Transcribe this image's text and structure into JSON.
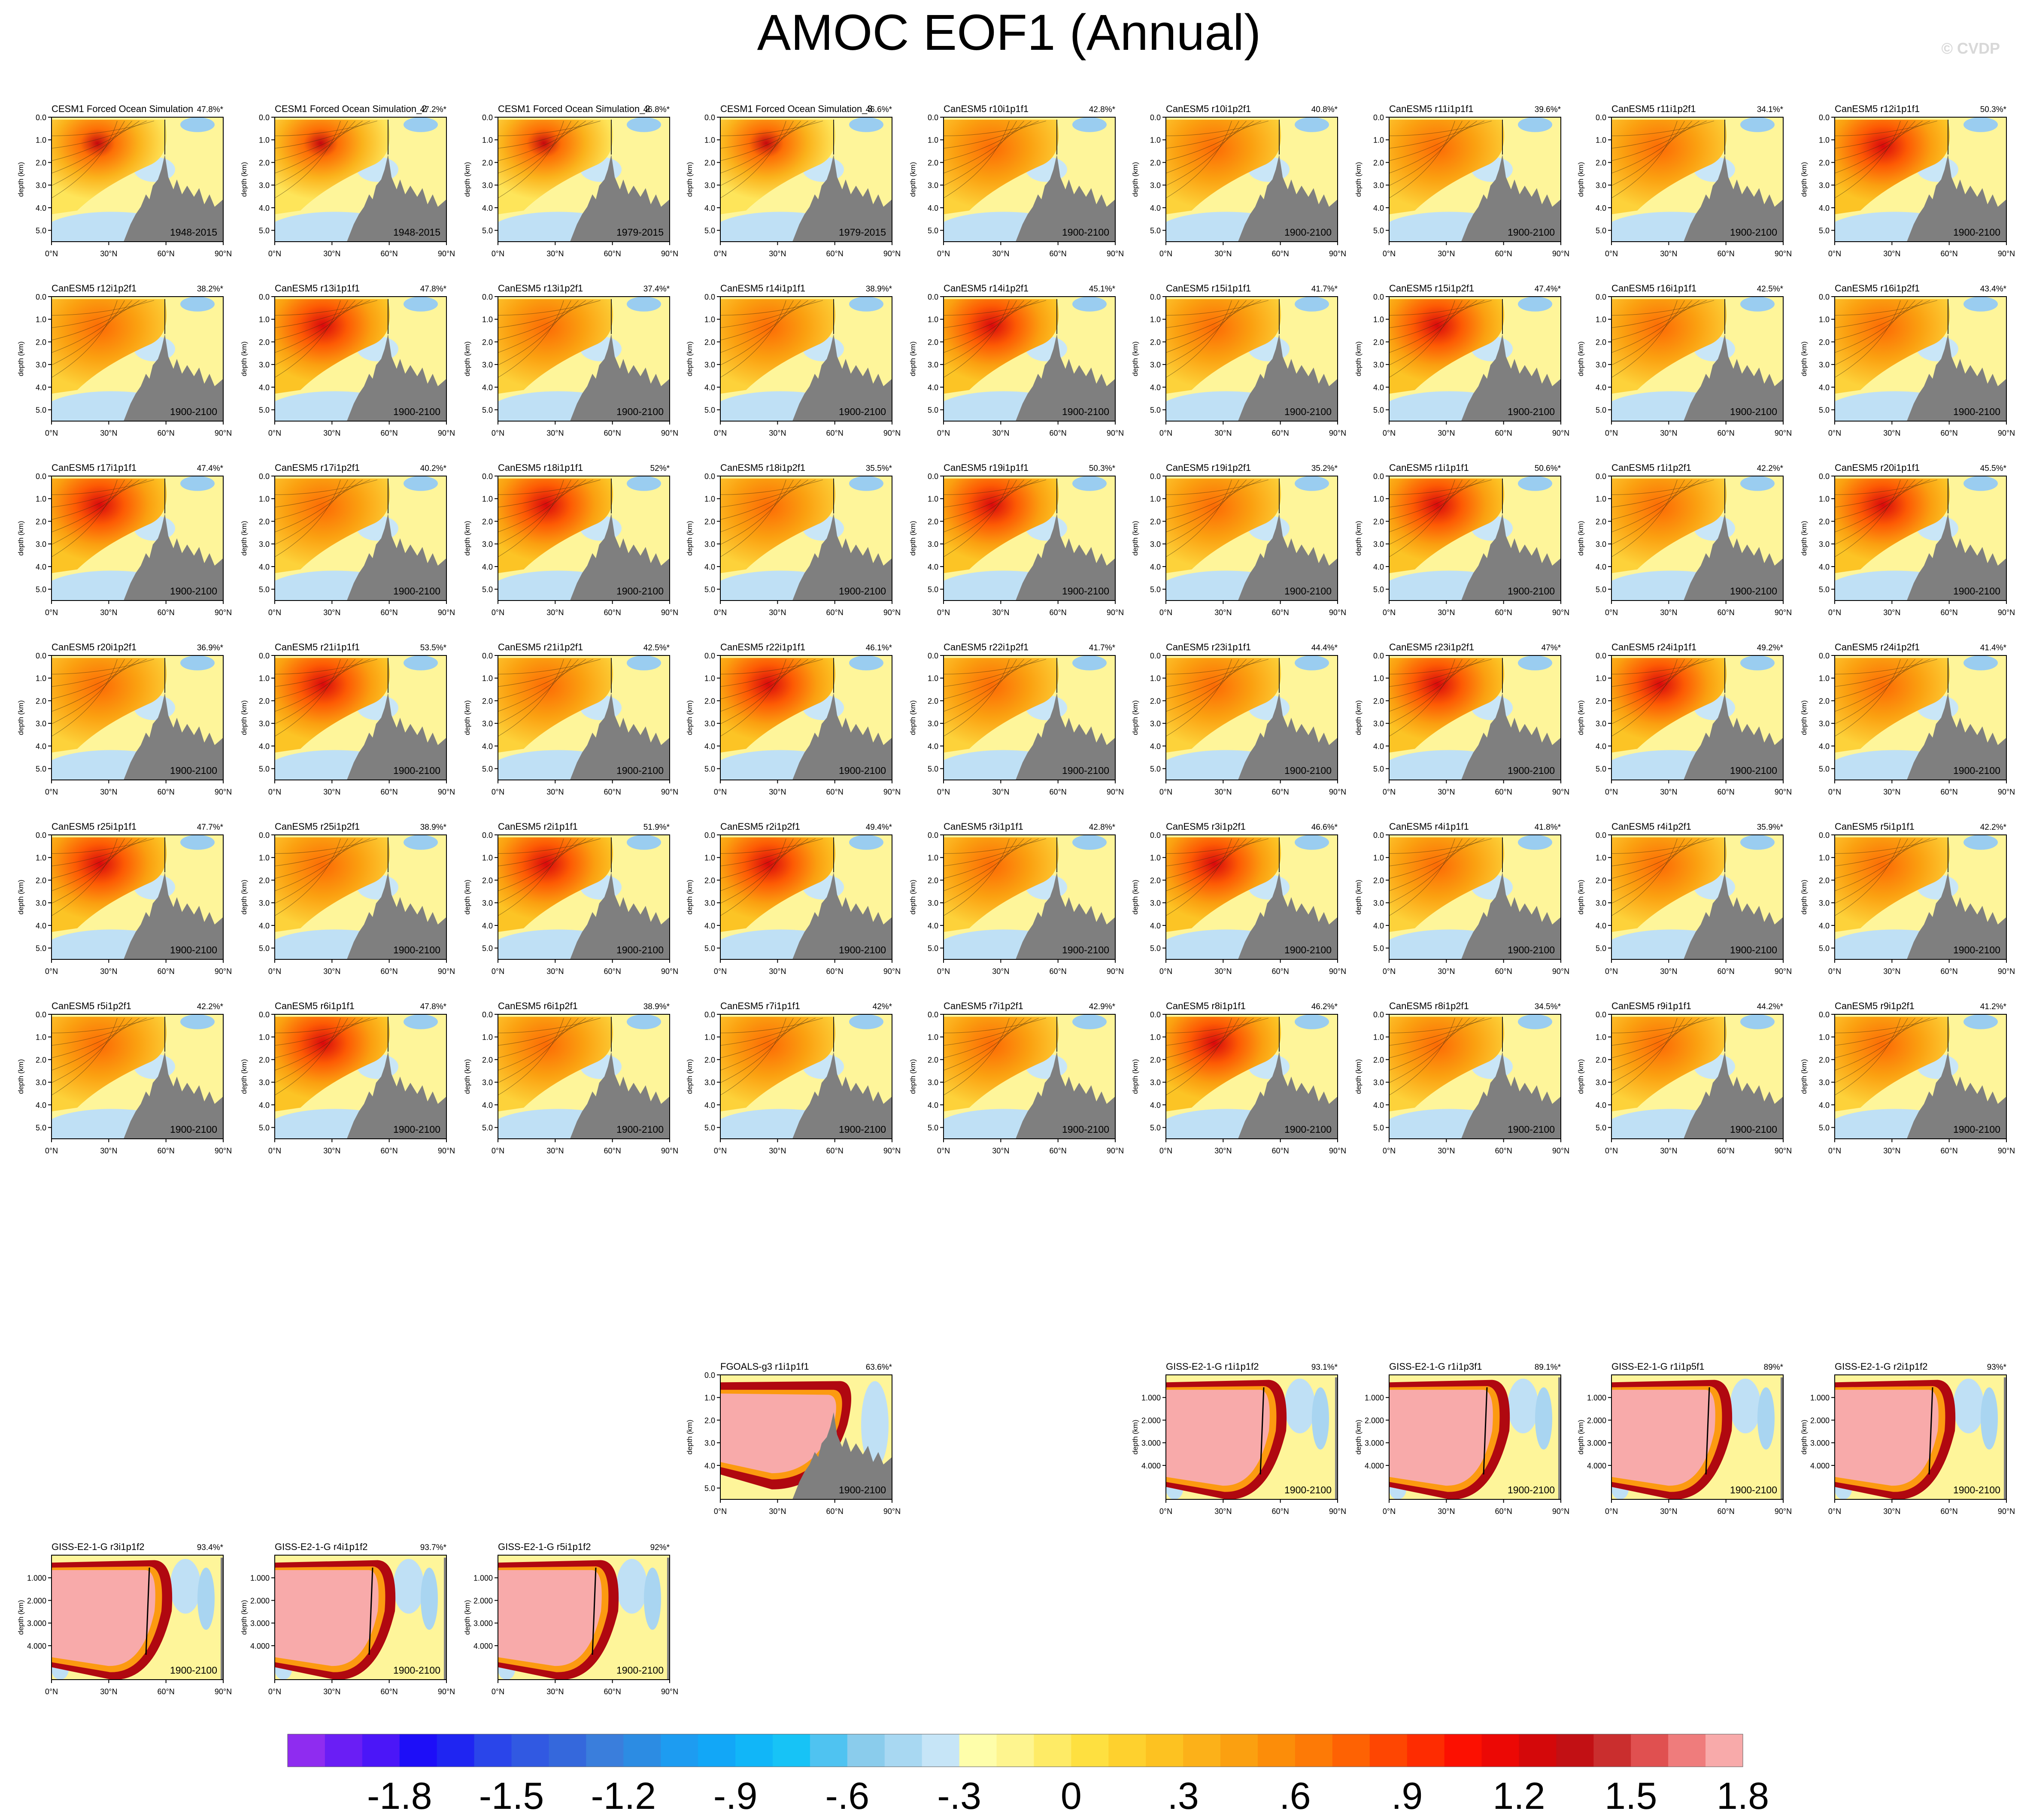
{
  "title": "AMOC EOF1 (Annual)",
  "credit": "© CVDP",
  "axes": {
    "ylabel": "depth (km)",
    "xticks": [
      "0°N",
      "30°N",
      "60°N",
      "90°N"
    ],
    "yticks_standard": [
      "0.0",
      "1.0",
      "2.0",
      "3.0",
      "4.0",
      "5.0"
    ],
    "yticks_giss": [
      "1.000",
      "2.000",
      "3.000",
      "4.000"
    ],
    "x_range_degN": [
      0,
      90
    ],
    "depth_range_km": [
      0,
      5.5
    ]
  },
  "chart_data": {
    "type": "heatmap",
    "layout": "panel-grid",
    "panels": [
      {
        "name": "CESM1 Forced Ocean Simulation",
        "pct": "47.8%*",
        "period": "1948-2015",
        "row": 0,
        "col": 0,
        "style": "cesm"
      },
      {
        "name": "CESM1 Forced Ocean Simulation_2",
        "pct": "47.2%*",
        "period": "1948-2015",
        "row": 0,
        "col": 1,
        "style": "cesm"
      },
      {
        "name": "CESM1 Forced Ocean Simulation_2",
        "pct": "46.8%*",
        "period": "1979-2015",
        "row": 0,
        "col": 2,
        "style": "cesm"
      },
      {
        "name": "CESM1 Forced Ocean Simulation_3",
        "pct": "46.6%*",
        "period": "1979-2015",
        "row": 0,
        "col": 3,
        "style": "cesm"
      },
      {
        "name": "CanESM5 r10i1p1f1",
        "pct": "42.8%*",
        "period": "1900-2100",
        "row": 0,
        "col": 4,
        "style": "can"
      },
      {
        "name": "CanESM5 r10i1p2f1",
        "pct": "40.8%*",
        "period": "1900-2100",
        "row": 0,
        "col": 5,
        "style": "can"
      },
      {
        "name": "CanESM5 r11i1p1f1",
        "pct": "39.6%*",
        "period": "1900-2100",
        "row": 0,
        "col": 6,
        "style": "can"
      },
      {
        "name": "CanESM5 r11i1p2f1",
        "pct": "34.1%*",
        "period": "1900-2100",
        "row": 0,
        "col": 7,
        "style": "can"
      },
      {
        "name": "CanESM5 r12i1p1f1",
        "pct": "50.3%*",
        "period": "1900-2100",
        "row": 0,
        "col": 8,
        "style": "can"
      },
      {
        "name": "CanESM5 r12i1p2f1",
        "pct": "38.2%*",
        "period": "1900-2100",
        "row": 1,
        "col": 0,
        "style": "can"
      },
      {
        "name": "CanESM5 r13i1p1f1",
        "pct": "47.8%*",
        "period": "1900-2100",
        "row": 1,
        "col": 1,
        "style": "can"
      },
      {
        "name": "CanESM5 r13i1p2f1",
        "pct": "37.4%*",
        "period": "1900-2100",
        "row": 1,
        "col": 2,
        "style": "can"
      },
      {
        "name": "CanESM5 r14i1p1f1",
        "pct": "38.9%*",
        "period": "1900-2100",
        "row": 1,
        "col": 3,
        "style": "can"
      },
      {
        "name": "CanESM5 r14i1p2f1",
        "pct": "45.1%*",
        "period": "1900-2100",
        "row": 1,
        "col": 4,
        "style": "can"
      },
      {
        "name": "CanESM5 r15i1p1f1",
        "pct": "41.7%*",
        "period": "1900-2100",
        "row": 1,
        "col": 5,
        "style": "can"
      },
      {
        "name": "CanESM5 r15i1p2f1",
        "pct": "47.4%*",
        "period": "1900-2100",
        "row": 1,
        "col": 6,
        "style": "can"
      },
      {
        "name": "CanESM5 r16i1p1f1",
        "pct": "42.5%*",
        "period": "1900-2100",
        "row": 1,
        "col": 7,
        "style": "can"
      },
      {
        "name": "CanESM5 r16i1p2f1",
        "pct": "43.4%*",
        "period": "1900-2100",
        "row": 1,
        "col": 8,
        "style": "can"
      },
      {
        "name": "CanESM5 r17i1p1f1",
        "pct": "47.4%*",
        "period": "1900-2100",
        "row": 2,
        "col": 0,
        "style": "can"
      },
      {
        "name": "CanESM5 r17i1p2f1",
        "pct": "40.2%*",
        "period": "1900-2100",
        "row": 2,
        "col": 1,
        "style": "can"
      },
      {
        "name": "CanESM5 r18i1p1f1",
        "pct": "52%*",
        "period": "1900-2100",
        "row": 2,
        "col": 2,
        "style": "can"
      },
      {
        "name": "CanESM5 r18i1p2f1",
        "pct": "35.5%*",
        "period": "1900-2100",
        "row": 2,
        "col": 3,
        "style": "can"
      },
      {
        "name": "CanESM5 r19i1p1f1",
        "pct": "50.3%*",
        "period": "1900-2100",
        "row": 2,
        "col": 4,
        "style": "can"
      },
      {
        "name": "CanESM5 r19i1p2f1",
        "pct": "35.2%*",
        "period": "1900-2100",
        "row": 2,
        "col": 5,
        "style": "can"
      },
      {
        "name": "CanESM5 r1i1p1f1",
        "pct": "50.6%*",
        "period": "1900-2100",
        "row": 2,
        "col": 6,
        "style": "can"
      },
      {
        "name": "CanESM5 r1i1p2f1",
        "pct": "42.2%*",
        "period": "1900-2100",
        "row": 2,
        "col": 7,
        "style": "can"
      },
      {
        "name": "CanESM5 r20i1p1f1",
        "pct": "45.5%*",
        "period": "1900-2100",
        "row": 2,
        "col": 8,
        "style": "can"
      },
      {
        "name": "CanESM5 r20i1p2f1",
        "pct": "36.9%*",
        "period": "1900-2100",
        "row": 3,
        "col": 0,
        "style": "can"
      },
      {
        "name": "CanESM5 r21i1p1f1",
        "pct": "53.5%*",
        "period": "1900-2100",
        "row": 3,
        "col": 1,
        "style": "can"
      },
      {
        "name": "CanESM5 r21i1p2f1",
        "pct": "42.5%*",
        "period": "1900-2100",
        "row": 3,
        "col": 2,
        "style": "can"
      },
      {
        "name": "CanESM5 r22i1p1f1",
        "pct": "46.1%*",
        "period": "1900-2100",
        "row": 3,
        "col": 3,
        "style": "can"
      },
      {
        "name": "CanESM5 r22i1p2f1",
        "pct": "41.7%*",
        "period": "1900-2100",
        "row": 3,
        "col": 4,
        "style": "can"
      },
      {
        "name": "CanESM5 r23i1p1f1",
        "pct": "44.4%*",
        "period": "1900-2100",
        "row": 3,
        "col": 5,
        "style": "can"
      },
      {
        "name": "CanESM5 r23i1p2f1",
        "pct": "47%*",
        "period": "1900-2100",
        "row": 3,
        "col": 6,
        "style": "can"
      },
      {
        "name": "CanESM5 r24i1p1f1",
        "pct": "49.2%*",
        "period": "1900-2100",
        "row": 3,
        "col": 7,
        "style": "can"
      },
      {
        "name": "CanESM5 r24i1p2f1",
        "pct": "41.4%*",
        "period": "1900-2100",
        "row": 3,
        "col": 8,
        "style": "can"
      },
      {
        "name": "CanESM5 r25i1p1f1",
        "pct": "47.7%*",
        "period": "1900-2100",
        "row": 4,
        "col": 0,
        "style": "can"
      },
      {
        "name": "CanESM5 r25i1p2f1",
        "pct": "38.9%*",
        "period": "1900-2100",
        "row": 4,
        "col": 1,
        "style": "can"
      },
      {
        "name": "CanESM5 r2i1p1f1",
        "pct": "51.9%*",
        "period": "1900-2100",
        "row": 4,
        "col": 2,
        "style": "can"
      },
      {
        "name": "CanESM5 r2i1p2f1",
        "pct": "49.4%*",
        "period": "1900-2100",
        "row": 4,
        "col": 3,
        "style": "can"
      },
      {
        "name": "CanESM5 r3i1p1f1",
        "pct": "42.8%*",
        "period": "1900-2100",
        "row": 4,
        "col": 4,
        "style": "can"
      },
      {
        "name": "CanESM5 r3i1p2f1",
        "pct": "46.6%*",
        "period": "1900-2100",
        "row": 4,
        "col": 5,
        "style": "can"
      },
      {
        "name": "CanESM5 r4i1p1f1",
        "pct": "41.8%*",
        "period": "1900-2100",
        "row": 4,
        "col": 6,
        "style": "can"
      },
      {
        "name": "CanESM5 r4i1p2f1",
        "pct": "35.9%*",
        "period": "1900-2100",
        "row": 4,
        "col": 7,
        "style": "can"
      },
      {
        "name": "CanESM5 r5i1p1f1",
        "pct": "42.2%*",
        "period": "1900-2100",
        "row": 4,
        "col": 8,
        "style": "can"
      },
      {
        "name": "CanESM5 r5i1p2f1",
        "pct": "42.2%*",
        "period": "1900-2100",
        "row": 5,
        "col": 0,
        "style": "can"
      },
      {
        "name": "CanESM5 r6i1p1f1",
        "pct": "47.8%*",
        "period": "1900-2100",
        "row": 5,
        "col": 1,
        "style": "can"
      },
      {
        "name": "CanESM5 r6i1p2f1",
        "pct": "38.9%*",
        "period": "1900-2100",
        "row": 5,
        "col": 2,
        "style": "can"
      },
      {
        "name": "CanESM5 r7i1p1f1",
        "pct": "42%*",
        "period": "1900-2100",
        "row": 5,
        "col": 3,
        "style": "can"
      },
      {
        "name": "CanESM5 r7i1p2f1",
        "pct": "42.9%*",
        "period": "1900-2100",
        "row": 5,
        "col": 4,
        "style": "can"
      },
      {
        "name": "CanESM5 r8i1p1f1",
        "pct": "46.2%*",
        "period": "1900-2100",
        "row": 5,
        "col": 5,
        "style": "can"
      },
      {
        "name": "CanESM5 r8i1p2f1",
        "pct": "34.5%*",
        "period": "1900-2100",
        "row": 5,
        "col": 6,
        "style": "can"
      },
      {
        "name": "CanESM5 r9i1p1f1",
        "pct": "44.2%*",
        "period": "1900-2100",
        "row": 5,
        "col": 7,
        "style": "can"
      },
      {
        "name": "CanESM5 r9i1p2f1",
        "pct": "41.2%*",
        "period": "1900-2100",
        "row": 5,
        "col": 8,
        "style": "can"
      },
      {
        "name": "FGOALS-g3 r1i1p1f1",
        "pct": "63.6%*",
        "period": "1900-2100",
        "row": 6,
        "col": 3,
        "style": "fgoals"
      },
      {
        "name": "GISS-E2-1-G r1i1p1f2",
        "pct": "93.1%*",
        "period": "1900-2100",
        "row": 6,
        "col": 5,
        "style": "giss"
      },
      {
        "name": "GISS-E2-1-G r1i1p3f1",
        "pct": "89.1%*",
        "period": "1900-2100",
        "row": 6,
        "col": 6,
        "style": "giss"
      },
      {
        "name": "GISS-E2-1-G r1i1p5f1",
        "pct": "89%*",
        "period": "1900-2100",
        "row": 6,
        "col": 7,
        "style": "giss"
      },
      {
        "name": "GISS-E2-1-G r2i1p1f2",
        "pct": "93%*",
        "period": "1900-2100",
        "row": 6,
        "col": 8,
        "style": "giss"
      },
      {
        "name": "GISS-E2-1-G r3i1p1f2",
        "pct": "93.4%*",
        "period": "1900-2100",
        "row": 7,
        "col": 0,
        "style": "giss"
      },
      {
        "name": "GISS-E2-1-G r4i1p1f2",
        "pct": "93.7%*",
        "period": "1900-2100",
        "row": 7,
        "col": 1,
        "style": "giss"
      },
      {
        "name": "GISS-E2-1-G r5i1p1f2",
        "pct": "92%*",
        "period": "1900-2100",
        "row": 7,
        "col": 2,
        "style": "giss"
      }
    ],
    "colorbar": {
      "labels": [
        "-1.8",
        "-1.5",
        "-1.2",
        "-.9",
        "-.6",
        "-.3",
        "0",
        ".3",
        ".6",
        ".9",
        "1.2",
        "1.5",
        "1.8"
      ],
      "colors": [
        "#8f2cf0",
        "#6a1ef5",
        "#4b16f8",
        "#1d0ef8",
        "#1f25f2",
        "#2a45ea",
        "#3159e2",
        "#3568dc",
        "#3a7edc",
        "#2c8ce3",
        "#1d9cf1",
        "#12a7f7",
        "#11b6f8",
        "#17c3f6",
        "#4fc3f1",
        "#8accec",
        "#a8d8f2",
        "#c6e5f7",
        "#fefeaa",
        "#fef58f",
        "#feeb66",
        "#fee040",
        "#fed12e",
        "#fdc221",
        "#fcb119",
        "#fba010",
        "#fc8d09",
        "#fd7a06",
        "#fe6203",
        "#fe4602",
        "#fe2c01",
        "#fc1001",
        "#ec0805",
        "#d4080a",
        "#c21014",
        "#ca2e2e",
        "#e05050",
        "#ef7c7c",
        "#f8aaaa"
      ],
      "units": "",
      "tick_every_cells": 3
    },
    "land_color": "#7f7f7f",
    "xlim": [
      0,
      90
    ],
    "ylim": [
      5.5,
      0
    ]
  }
}
